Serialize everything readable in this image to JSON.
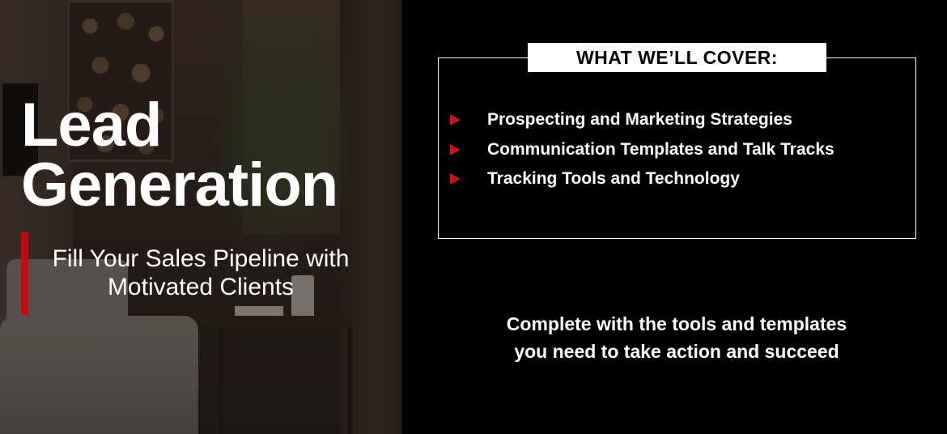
{
  "hero": {
    "title_line1": "Lead",
    "title_line2": "Generation",
    "subtitle": "Fill Your Sales Pipeline with Motivated Clients",
    "accent_color": "#b80f14"
  },
  "cover": {
    "header": "WHAT WE’LL COVER:",
    "items": [
      "Prospecting and Marketing Strategies",
      "Communication Templates and Talk Tracks",
      "Tracking Tools and Technology"
    ],
    "bullet_color": "#c7141b"
  },
  "tagline": "Complete with the tools and templates you need to take action and succeed"
}
